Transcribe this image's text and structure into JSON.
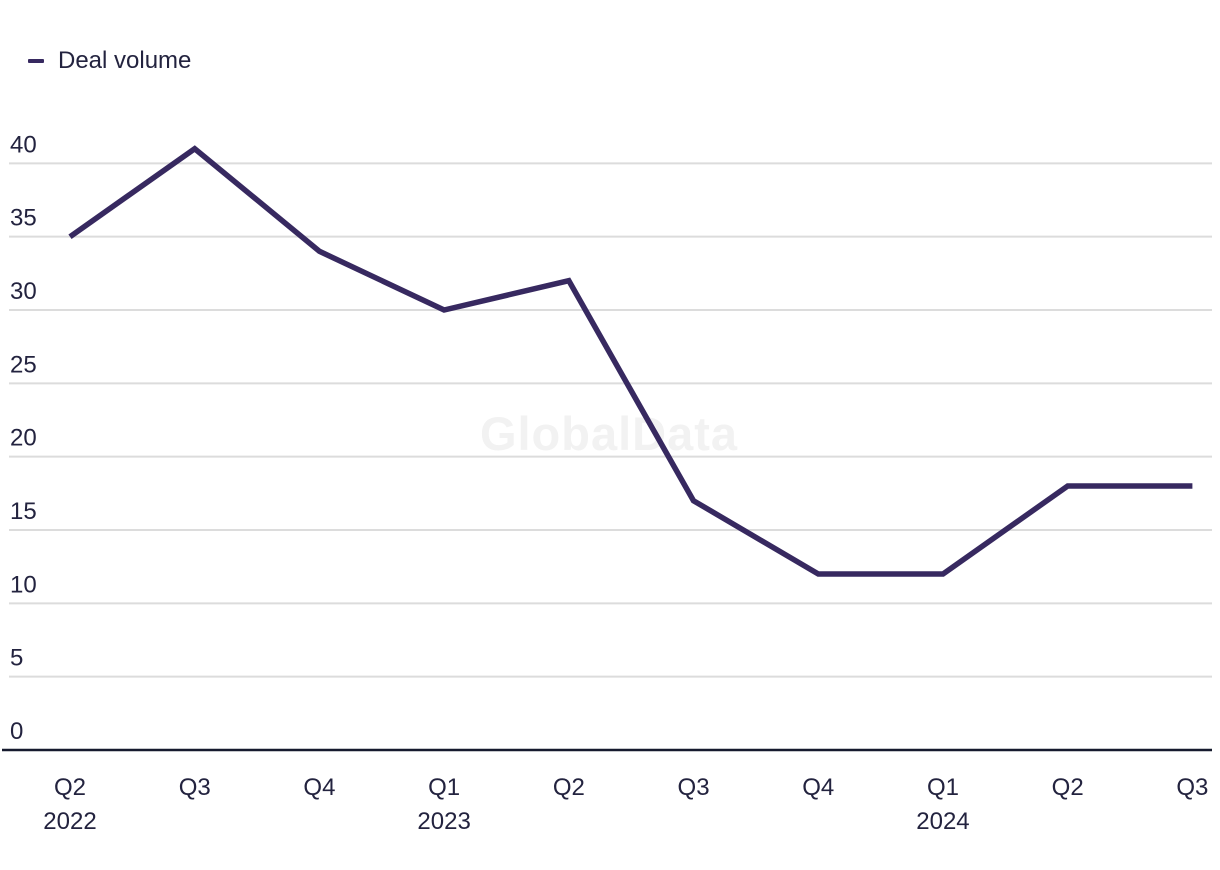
{
  "colors": {
    "line": "#372960",
    "tick_text": "#23233f",
    "gridline": "#dcdcdc",
    "axis": "#161a2e",
    "watermark_text": "#f2f2f2"
  },
  "chart_data": {
    "type": "line",
    "title": "",
    "xlabel": "",
    "ylabel": "",
    "categories": [
      "Q2 2022",
      "Q3 2022",
      "Q4 2022",
      "Q1 2023",
      "Q2 2023",
      "Q3 2023",
      "Q4 2023",
      "Q1 2024",
      "Q2 2024",
      "Q3 2024"
    ],
    "x_tick_lines": [
      [
        "Q2",
        "2022"
      ],
      [
        "Q3"
      ],
      [
        "Q4"
      ],
      [
        "Q1",
        "2023"
      ],
      [
        "Q2"
      ],
      [
        "Q3"
      ],
      [
        "Q4"
      ],
      [
        "Q1",
        "2024"
      ],
      [
        "Q2"
      ],
      [
        "Q3"
      ]
    ],
    "series": [
      {
        "name": "Deal volume",
        "color": "#372960",
        "values": [
          35,
          41,
          34,
          30,
          32,
          17,
          12,
          12,
          18,
          18
        ]
      }
    ],
    "y_ticks": [
      0,
      5,
      10,
      15,
      20,
      25,
      30,
      35,
      40
    ],
    "ylim": [
      0,
      44
    ],
    "grid": "horizontal-only",
    "legend_position": "top-left",
    "watermark": "GlobalData"
  }
}
